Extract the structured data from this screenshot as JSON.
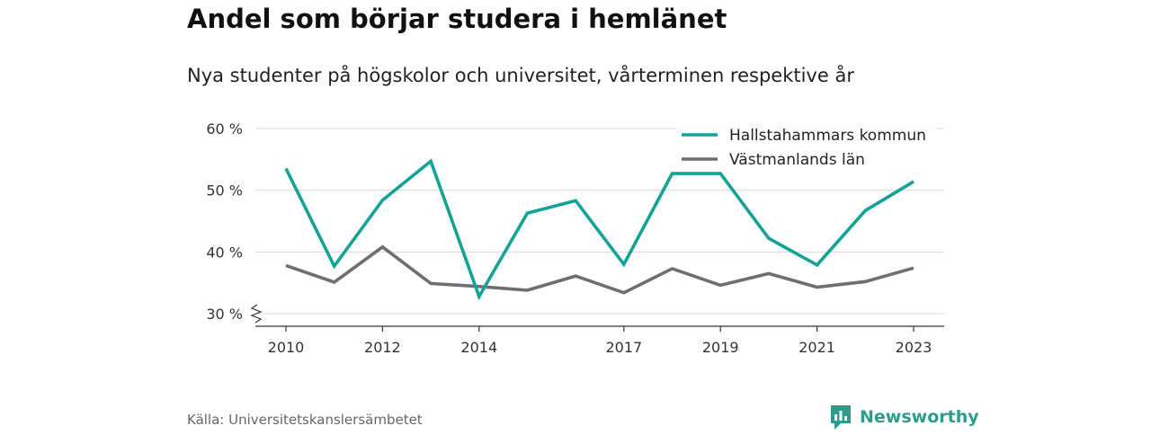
{
  "title": "Andel som börjar studera i hemlänet",
  "subtitle": "Nya studenter på högskolor och universitet, vårterminen respektive år",
  "source": "Källa: Universitetskanslersämbetet",
  "brand": {
    "name": "Newsworthy",
    "logo_icon": "chart-bubble-icon",
    "color": "#2e9c8c"
  },
  "chart_data": {
    "type": "line",
    "title": "Andel som börjar studera i hemlänet",
    "subtitle": "Nya studenter på högskolor och universitet, vårterminen respektive år",
    "xlabel": "",
    "ylabel": "",
    "x": [
      2010,
      2011,
      2012,
      2013,
      2014,
      2015,
      2016,
      2017,
      2018,
      2019,
      2020,
      2021,
      2022,
      2023
    ],
    "x_tick_labels": [
      "2010",
      "2012",
      "2014",
      "2017",
      "2019",
      "2021",
      "2023"
    ],
    "x_tick_values": [
      2010,
      2012,
      2014,
      2017,
      2019,
      2021,
      2023
    ],
    "y_ticks": [
      30,
      40,
      50,
      60
    ],
    "y_tick_labels": [
      "30 %",
      "40 %",
      "50 %",
      "60 %"
    ],
    "ylim": [
      28,
      60
    ],
    "y_axis_break": true,
    "grid": true,
    "legend_position": "top-right",
    "series": [
      {
        "name": "Hallstahammars kommun",
        "color": "#14a396",
        "values": [
          53.5,
          37.7,
          48.4,
          54.7,
          32.8,
          46.3,
          48.3,
          38.0,
          52.7,
          52.7,
          42.2,
          37.9,
          46.7,
          51.4
        ]
      },
      {
        "name": "Västmanlands län",
        "color": "#6f6e72",
        "values": [
          37.8,
          35.1,
          40.8,
          34.9,
          34.4,
          33.8,
          36.1,
          33.4,
          37.3,
          34.6,
          36.5,
          34.3,
          35.2,
          37.4
        ]
      }
    ]
  }
}
